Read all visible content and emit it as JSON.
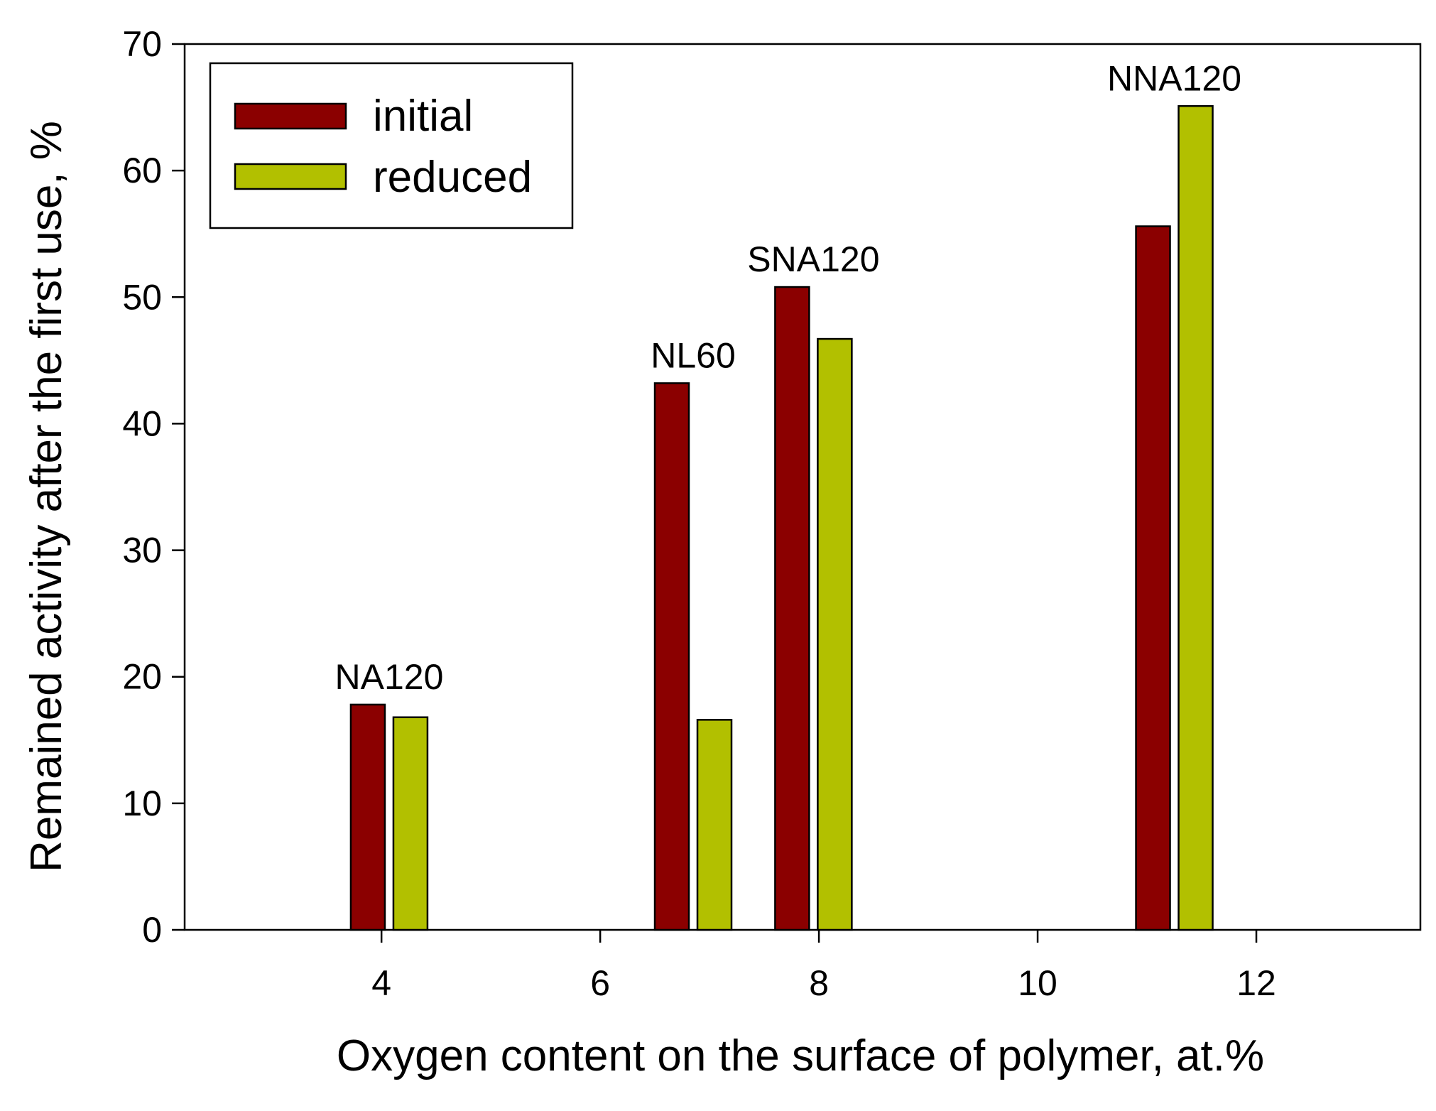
{
  "chart_data": {
    "type": "bar",
    "title": "",
    "xlabel": "Oxygen content on the surface of polymer, at.%",
    "ylabel": "Remained activity after the first use, %",
    "xlim": [
      2.2,
      13.5
    ],
    "ylim": [
      0,
      70
    ],
    "xticks": [
      4,
      6,
      8,
      10,
      12
    ],
    "yticks": [
      0,
      10,
      20,
      30,
      40,
      50,
      60,
      70
    ],
    "grid": false,
    "legend_position": "top-left",
    "groups": [
      {
        "label": "NA120",
        "x": 4.07
      },
      {
        "label": "NL60",
        "x": 6.85
      },
      {
        "label": "SNA120",
        "x": 7.95
      },
      {
        "label": "NNA120",
        "x": 11.25
      }
    ],
    "series": [
      {
        "name": "initial",
        "color": "#8b0000",
        "values": [
          17.8,
          43.2,
          50.8,
          55.6
        ]
      },
      {
        "name": "reduced",
        "color": "#b2c000",
        "values": [
          16.8,
          16.6,
          46.7,
          65.1
        ]
      }
    ]
  }
}
